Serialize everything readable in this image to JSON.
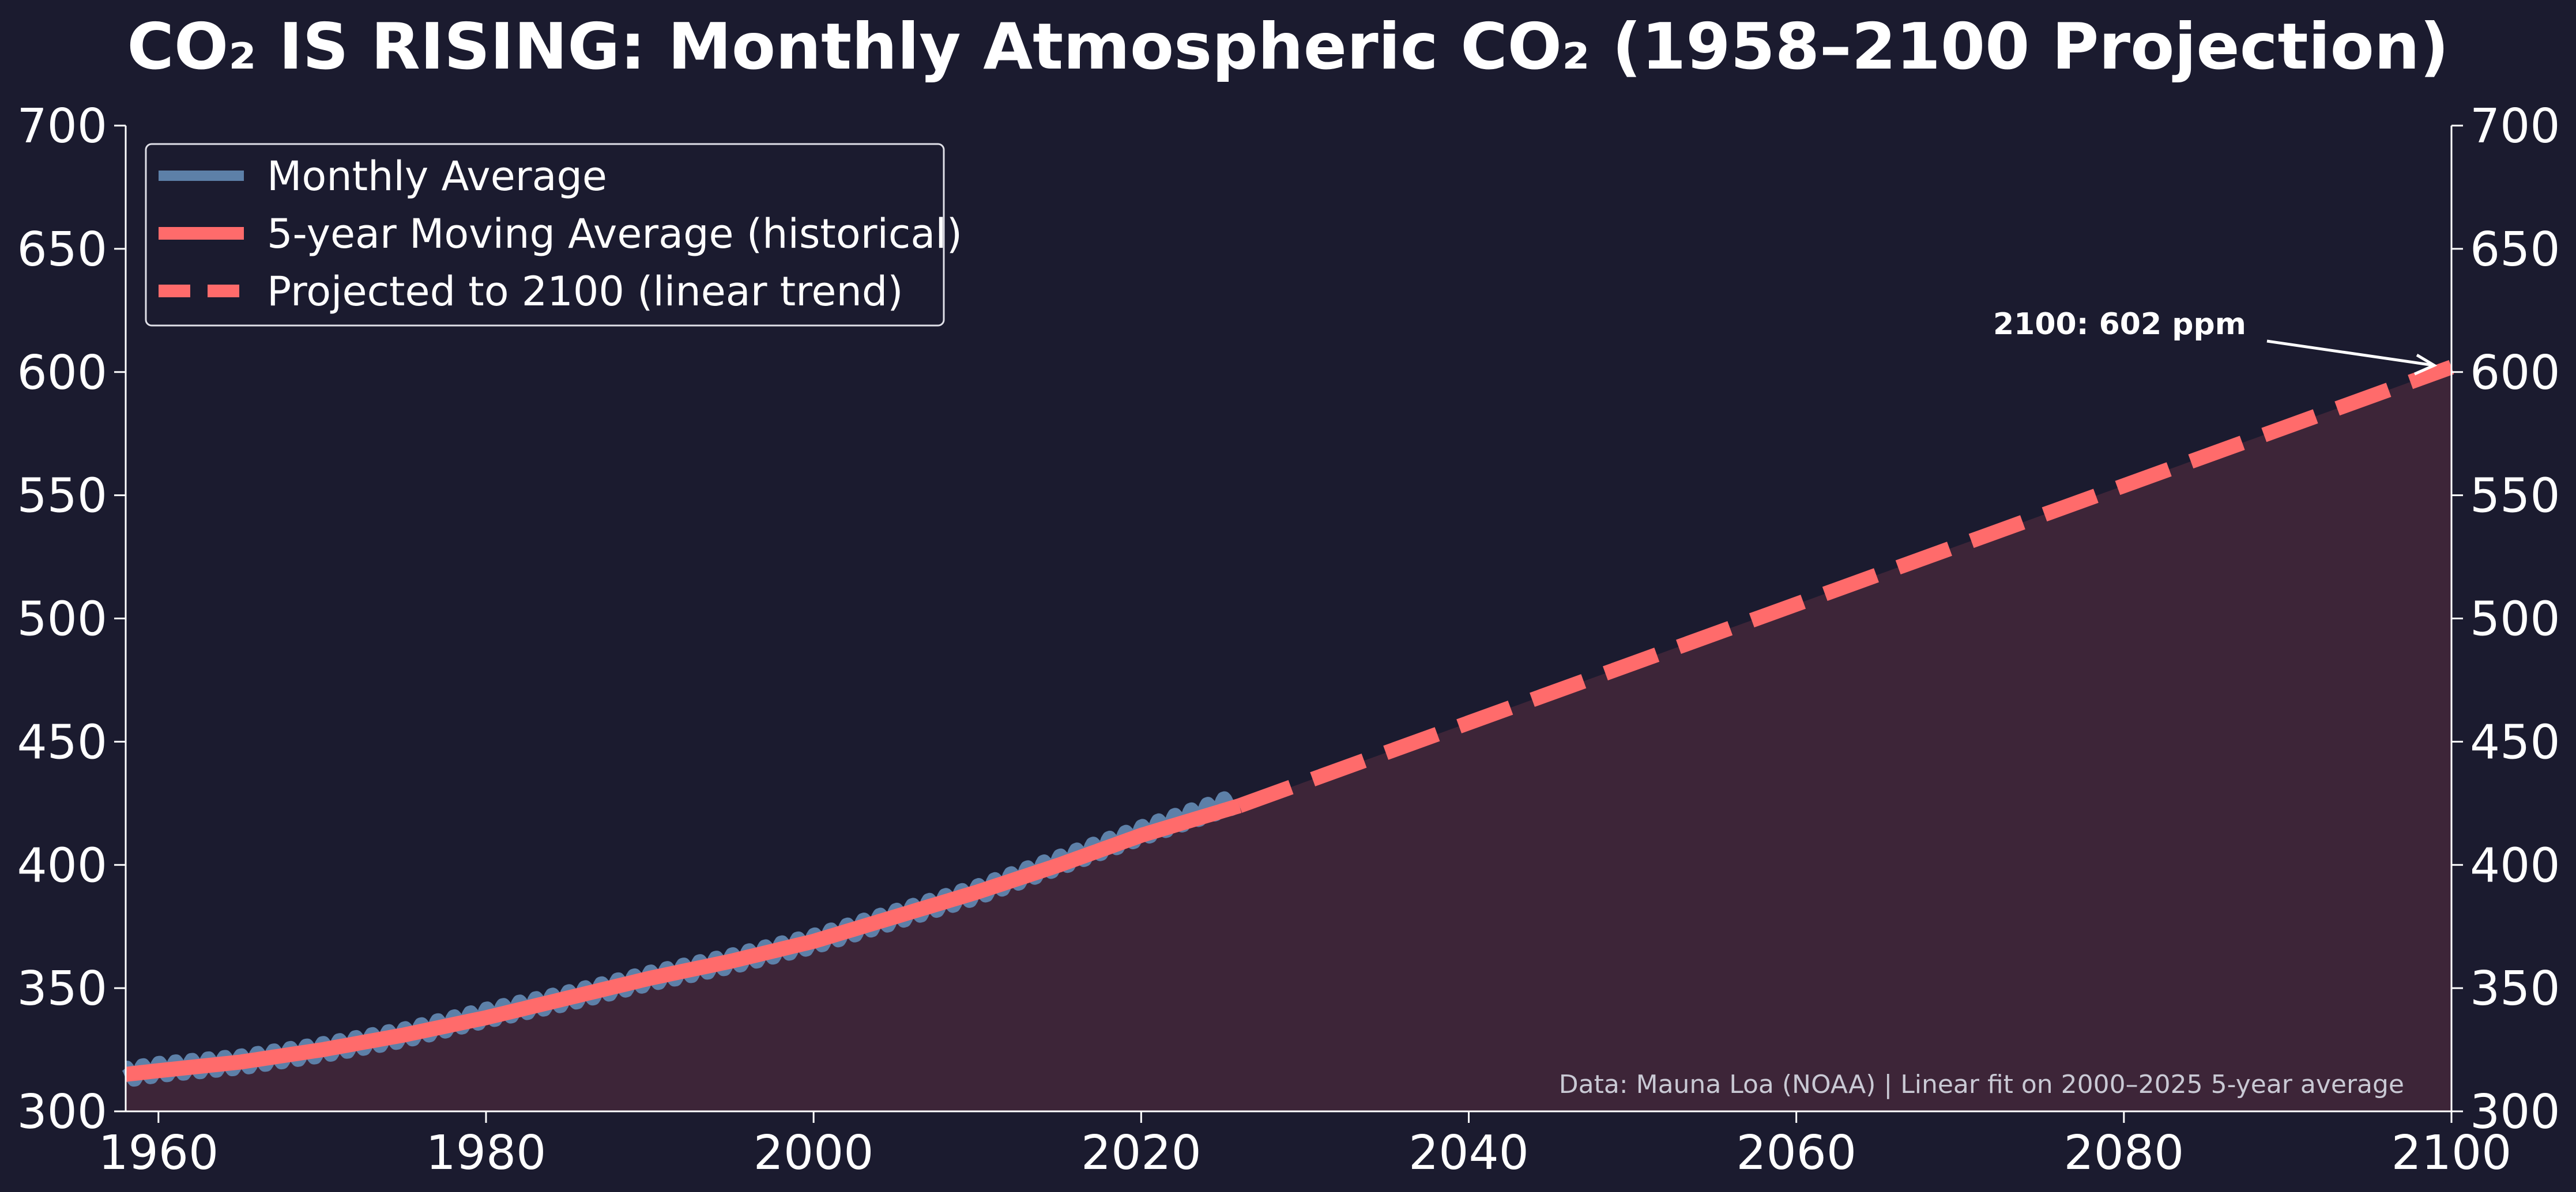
{
  "chart_data": {
    "type": "line",
    "title": "CO₂ IS RISING: Monthly Atmospheric CO₂ (1958–2100 Projection)",
    "xlabel": "",
    "ylabel": "",
    "xlim": [
      1958,
      2100
    ],
    "ylim": [
      300,
      700
    ],
    "x_ticks": [
      1960,
      1980,
      2000,
      2020,
      2040,
      2060,
      2080,
      2100
    ],
    "y_ticks": [
      300,
      350,
      400,
      450,
      500,
      550,
      600,
      650,
      700
    ],
    "y_axis_right": true,
    "grid": false,
    "legend_position": "top-left",
    "colors": {
      "background": "#1b1b2f",
      "monthly": "#5d80a8",
      "moving_average": "#ff6b6b",
      "projection_fill": "#3d2538",
      "axis": "#ffffff"
    },
    "seasonal_amplitude_ppm": 3,
    "series": [
      {
        "name": "Monthly Average",
        "style": "solid-thin",
        "x": [
          1958,
          1960,
          1965,
          1970,
          1975,
          1980,
          1985,
          1990,
          1995,
          2000,
          2005,
          2010,
          2015,
          2020,
          2025.8
        ],
        "y": [
          315,
          317,
          320,
          325,
          331,
          339,
          346,
          354,
          361,
          369,
          379,
          389,
          401,
          413,
          426
        ]
      },
      {
        "name": "5-year Moving Average (historical)",
        "style": "solid-thick",
        "x": [
          1958,
          1960,
          1965,
          1970,
          1975,
          1980,
          1985,
          1990,
          1995,
          2000,
          2005,
          2010,
          2015,
          2020,
          2026
        ],
        "y": [
          315,
          316.5,
          320,
          325,
          331,
          338,
          346,
          354,
          361,
          369,
          379,
          389,
          400,
          412,
          424
        ]
      },
      {
        "name": "Projected to 2100 (linear trend)",
        "style": "dashed",
        "x": [
          2026,
          2100
        ],
        "y": [
          424,
          602
        ]
      }
    ],
    "annotations": [
      {
        "text": "2100: 602 ppm",
        "x": 2100,
        "y": 602,
        "arrow": true
      }
    ],
    "source_note": "Data: Mauna Loa (NOAA) | Linear fit on 2000–2025 5-year average"
  }
}
